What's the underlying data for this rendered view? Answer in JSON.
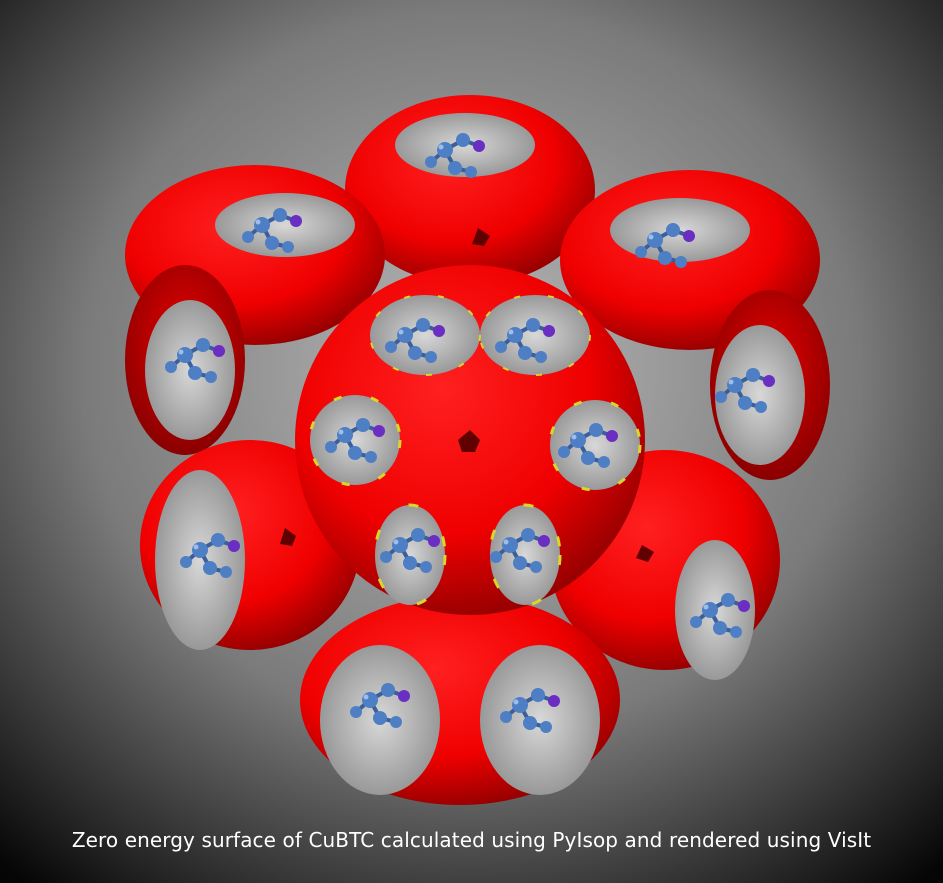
{
  "caption": "Zero energy surface of CuBTC calculated using PyIsop and rendered using VisIt",
  "colors": {
    "background_center": "#b4b4b4",
    "background_edge": "#050505",
    "surface_red": "#ff0000",
    "surface_shadow": "#6a0000",
    "atom_blue": "#4e7fc4",
    "atom_purple": "#6a2ec2",
    "atom_yellow": "#d9d62b",
    "pore_white": "#f0f0f0"
  }
}
